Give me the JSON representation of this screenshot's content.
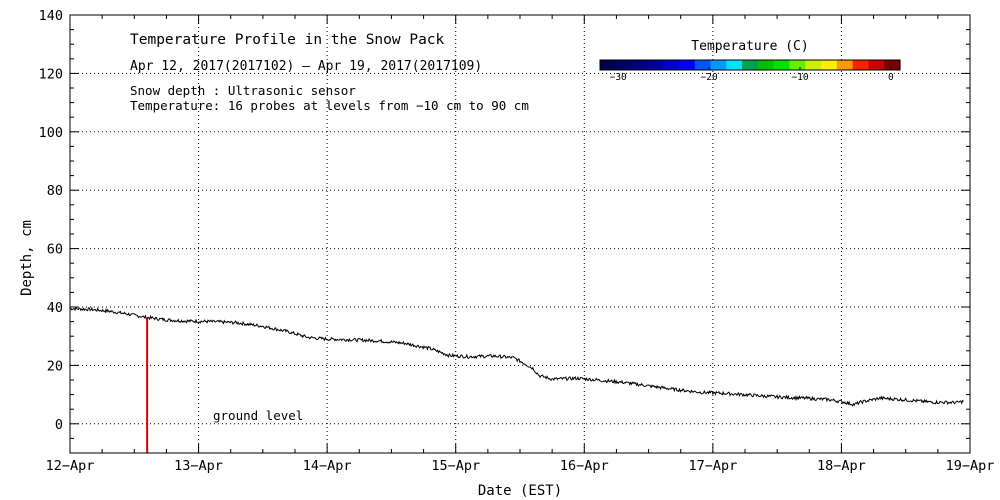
{
  "chart_data": {
    "type": "line",
    "title": "Temperature Profile in the Snow Pack",
    "subtitle": "Apr 12, 2017(2017102) — Apr 19, 2017(2017109)",
    "notes": [
      "Snow depth : Ultrasonic sensor",
      "Temperature: 16 probes at levels from −10 cm to 90 cm"
    ],
    "xlabel": "Date (EST)",
    "ylabel": "Depth, cm",
    "xlim": [
      0,
      7
    ],
    "ylim": [
      -10,
      140
    ],
    "grid": true,
    "x_tick_labels": [
      "12−Apr",
      "13−Apr",
      "14−Apr",
      "15−Apr",
      "16−Apr",
      "17−Apr",
      "18−Apr",
      "19−Apr"
    ],
    "y_ticks": [
      0,
      20,
      40,
      60,
      80,
      100,
      120,
      140
    ],
    "y_tick_labels": [
      "0",
      "20",
      "40",
      "60",
      "80",
      "100",
      "120",
      "140"
    ],
    "series": [
      {
        "name": "Snow depth",
        "color": "#000000",
        "points": [
          [
            0.0,
            39.5
          ],
          [
            0.15,
            39.2
          ],
          [
            0.3,
            38.6
          ],
          [
            0.45,
            37.6
          ],
          [
            0.6,
            36.4
          ],
          [
            0.75,
            35.6
          ],
          [
            0.9,
            35.2
          ],
          [
            1.1,
            35.0
          ],
          [
            1.3,
            34.6
          ],
          [
            1.5,
            33.4
          ],
          [
            1.7,
            31.5
          ],
          [
            1.85,
            29.6
          ],
          [
            2.0,
            29.0
          ],
          [
            2.2,
            28.8
          ],
          [
            2.4,
            28.4
          ],
          [
            2.6,
            27.6
          ],
          [
            2.8,
            25.8
          ],
          [
            2.95,
            23.4
          ],
          [
            3.1,
            23.0
          ],
          [
            3.3,
            23.2
          ],
          [
            3.45,
            22.6
          ],
          [
            3.52,
            21.0
          ],
          [
            3.6,
            19.0
          ],
          [
            3.65,
            16.5
          ],
          [
            3.75,
            15.3
          ],
          [
            3.95,
            15.6
          ],
          [
            4.1,
            15.0
          ],
          [
            4.3,
            14.2
          ],
          [
            4.5,
            13.0
          ],
          [
            4.7,
            11.8
          ],
          [
            4.9,
            10.8
          ],
          [
            5.1,
            10.4
          ],
          [
            5.3,
            9.8
          ],
          [
            5.5,
            9.2
          ],
          [
            5.7,
            8.8
          ],
          [
            5.9,
            8.3
          ],
          [
            6.0,
            7.6
          ],
          [
            6.1,
            6.6
          ],
          [
            6.15,
            7.4
          ],
          [
            6.3,
            8.8
          ],
          [
            6.5,
            8.2
          ],
          [
            6.7,
            7.4
          ],
          [
            6.9,
            7.3
          ],
          [
            6.95,
            7.7
          ]
        ]
      }
    ],
    "vertical_marker": {
      "x": 0.6,
      "y_from": -10,
      "y_to": 36.5,
      "color": "#dd0000"
    },
    "ground_label": {
      "text": "ground level",
      "x": 1.1,
      "y": 2.8
    },
    "colorbar": {
      "title": "Temperature (C)",
      "range": [
        -32,
        1
      ],
      "ticks": [
        -30,
        -20,
        -10,
        0
      ],
      "tick_labels": [
        "−30",
        "−20",
        "−10",
        "0"
      ],
      "colors": [
        "#00004e",
        "#000066",
        "#00007f",
        "#000099",
        "#0000cc",
        "#0000ff",
        "#0055ff",
        "#0099ff",
        "#00e0ff",
        "#00a050",
        "#00c000",
        "#00e000",
        "#66ee00",
        "#ccee00",
        "#ffee00",
        "#ff9900",
        "#ff2200",
        "#cc0000",
        "#770000"
      ]
    }
  }
}
